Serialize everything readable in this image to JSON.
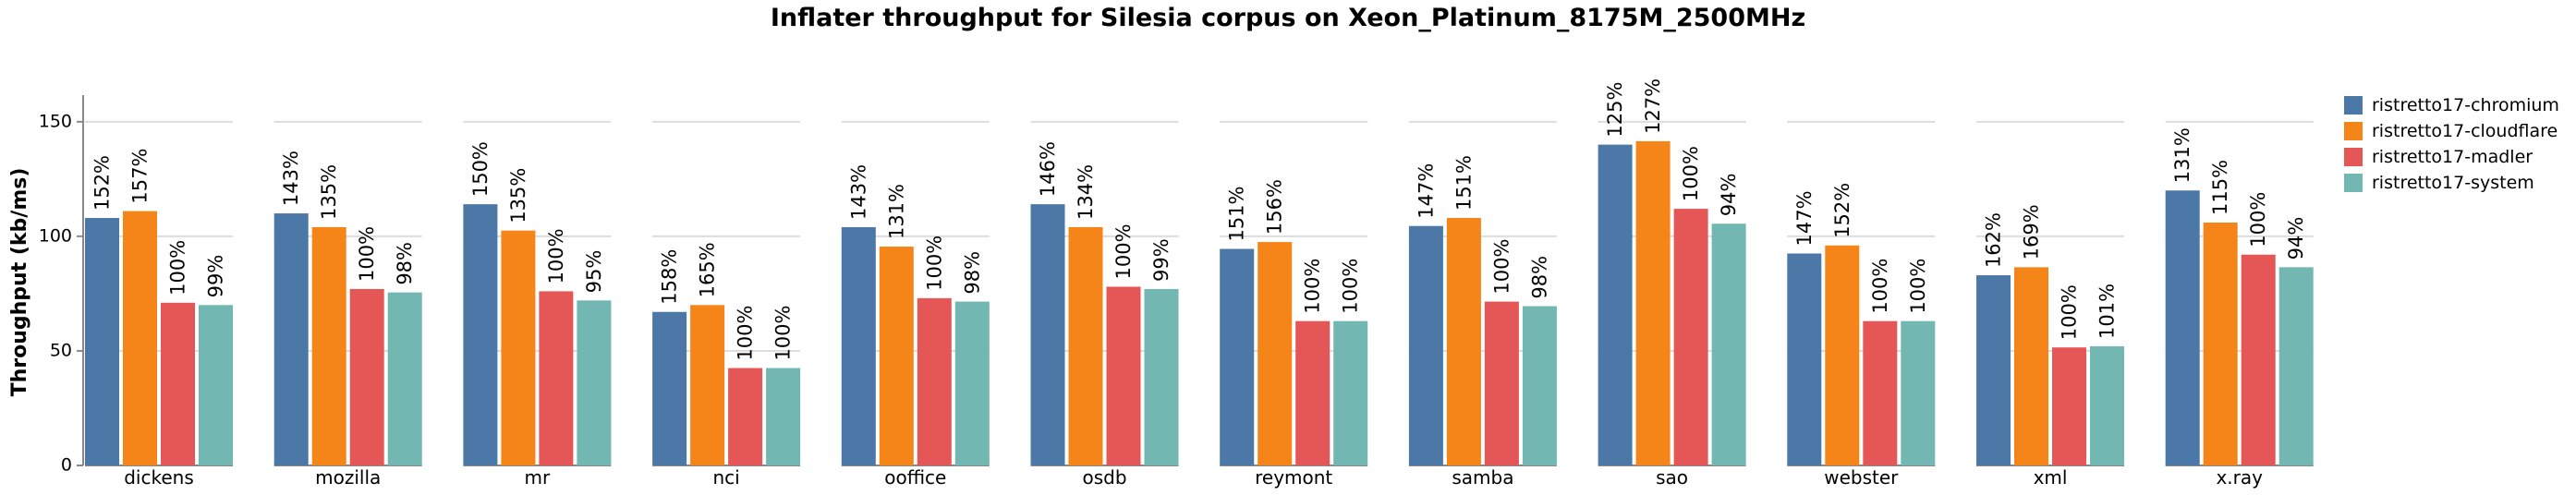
{
  "chart_data": {
    "type": "bar",
    "title": "Inflater throughput for Silesia corpus on Xeon_Platinum_8175M_2500MHz",
    "ylabel": "Throughput (kb/ms)",
    "xlabel": "",
    "ylim": [
      0,
      160
    ],
    "yticks": [
      0,
      50,
      100,
      150
    ],
    "grid": true,
    "legend_position": "top-right",
    "categories": [
      "dickens",
      "mozilla",
      "mr",
      "nci",
      "ooffice",
      "osdb",
      "reymont",
      "samba",
      "sao",
      "webster",
      "xml",
      "x.ray"
    ],
    "series": [
      {
        "name": "ristretto17-chromium",
        "color": "#4c78a8",
        "values": [
          108,
          110,
          114,
          67,
          104,
          114,
          94.5,
          104.5,
          140,
          92.5,
          83,
          120
        ],
        "labels": [
          "152%",
          "143%",
          "150%",
          "158%",
          "143%",
          "146%",
          "151%",
          "147%",
          "125%",
          "147%",
          "162%",
          "131%"
        ]
      },
      {
        "name": "ristretto17-cloudflare",
        "color": "#f58518",
        "values": [
          111,
          104,
          102.5,
          70,
          95.5,
          104,
          97.5,
          108,
          141.5,
          96,
          86.5,
          106
        ],
        "labels": [
          "157%",
          "135%",
          "135%",
          "165%",
          "131%",
          "134%",
          "156%",
          "151%",
          "127%",
          "152%",
          "169%",
          "115%"
        ]
      },
      {
        "name": "ristretto17-madler",
        "color": "#e45756",
        "values": [
          71,
          77,
          76,
          42.5,
          73,
          78,
          63,
          71.5,
          112,
          63,
          51.5,
          92
        ],
        "labels": [
          "100%",
          "100%",
          "100%",
          "100%",
          "100%",
          "100%",
          "100%",
          "100%",
          "100%",
          "100%",
          "100%",
          "100%"
        ]
      },
      {
        "name": "ristretto17-system",
        "color": "#72b7b2",
        "values": [
          70,
          75.5,
          72,
          42.5,
          71.5,
          77,
          63,
          69.5,
          105.5,
          63,
          52,
          86.5
        ],
        "labels": [
          "99%",
          "98%",
          "95%",
          "100%",
          "98%",
          "99%",
          "100%",
          "98%",
          "94%",
          "100%",
          "101%",
          "94%"
        ]
      }
    ]
  }
}
